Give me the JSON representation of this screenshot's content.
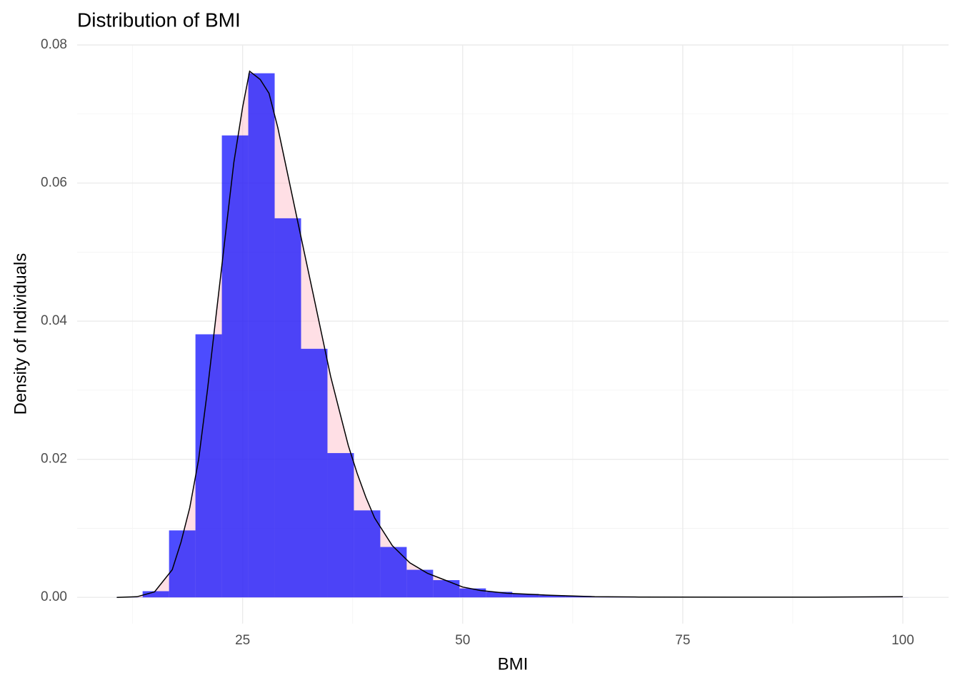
{
  "chart_data": {
    "type": "histogram",
    "title": "Distribution of BMI",
    "x_label": "BMI",
    "y_label": "Density of Individuals",
    "bins": [
      10.64,
      13.64,
      16.64,
      19.64,
      22.64,
      25.64,
      28.64,
      31.64,
      34.64,
      37.64,
      40.64,
      43.64,
      46.64,
      49.64,
      52.64,
      55.64,
      58.64,
      61.64,
      64.64,
      67.64,
      70.64,
      73.64,
      76.64,
      79.64,
      82.64,
      85.64,
      88.64,
      91.64,
      94.64,
      97.64,
      100.64
    ],
    "values": [
      2e-05,
      0.0009,
      0.0097,
      0.0381,
      0.0669,
      0.0759,
      0.0549,
      0.036,
      0.0209,
      0.0126,
      0.0073,
      0.004,
      0.0025,
      0.0013,
      0.0008,
      0.0005,
      0.0003,
      0.0002,
      0.0001,
      5e-05,
      3e-05,
      2e-05,
      2e-05,
      1e-05,
      1e-05,
      1e-05,
      1e-05,
      1e-05,
      1e-05,
      1e-05
    ],
    "color": "#0000ff",
    "density": {
      "x": [
        10.7,
        13,
        15,
        17,
        18,
        19,
        20,
        21,
        22,
        23,
        24,
        25,
        25.8,
        27,
        28,
        29,
        30,
        31,
        32,
        33,
        34,
        35,
        36,
        37,
        38,
        39,
        40,
        42,
        44,
        46,
        48,
        50,
        52,
        55,
        60,
        65,
        70,
        80,
        90,
        100
      ],
      "y": [
        0,
        0.0001,
        0.0008,
        0.004,
        0.008,
        0.013,
        0.02,
        0.03,
        0.041,
        0.052,
        0.063,
        0.071,
        0.0762,
        0.075,
        0.073,
        0.068,
        0.062,
        0.056,
        0.05,
        0.044,
        0.038,
        0.032,
        0.027,
        0.022,
        0.018,
        0.0145,
        0.0115,
        0.0075,
        0.005,
        0.0035,
        0.0025,
        0.0015,
        0.001,
        0.0006,
        0.0003,
        0.0001,
        5e-05,
        3e-05,
        3e-05,
        0.0001
      ],
      "fill": "#ffc0cb",
      "color": "#000000"
    },
    "xlim": [
      6.2,
      105.2
    ],
    "ylim": [
      -0.0038,
      0.08
    ],
    "xticks": [
      25,
      50,
      75,
      100
    ],
    "yticks": [
      {
        "value": 0,
        "label": "0.00"
      },
      {
        "value": 0.02,
        "label": "0.02"
      },
      {
        "value": 0.04,
        "label": "0.04"
      },
      {
        "value": 0.06,
        "label": "0.06"
      },
      {
        "value": 0.08,
        "label": "0.08"
      }
    ],
    "grid": true
  }
}
